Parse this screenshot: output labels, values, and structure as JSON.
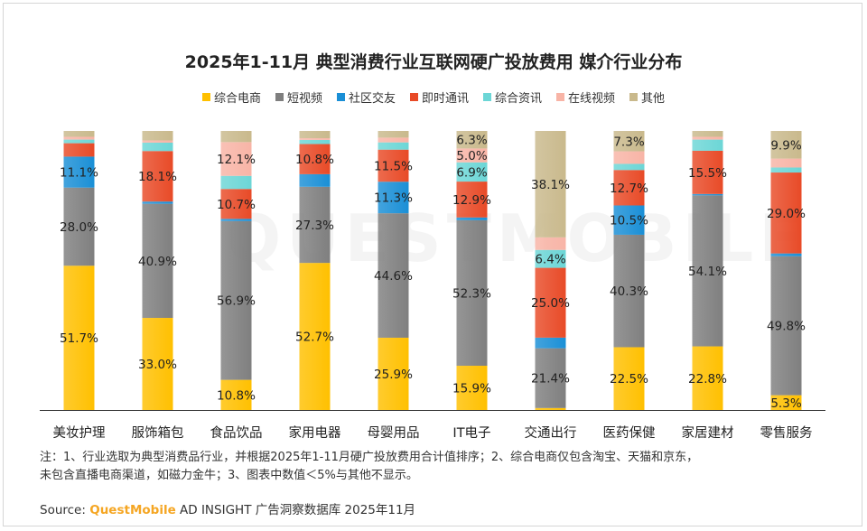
{
  "chart_data": {
    "type": "bar",
    "stacked": "percent",
    "title": "2025年1-11月 典型消费行业互联网硬广投放费用 媒介行业分布",
    "categories": [
      "美妆护理",
      "服饰箱包",
      "食品饮品",
      "家用电器",
      "母婴用品",
      "IT电子",
      "交通出行",
      "医药保健",
      "家居建材",
      "零售服务"
    ],
    "series": [
      {
        "name": "综合电商",
        "color": "#ffc000",
        "values": [
          51.7,
          33.0,
          10.8,
          52.7,
          25.9,
          15.9,
          0.7,
          22.5,
          22.8,
          5.3
        ]
      },
      {
        "name": "短视频",
        "color": "#7f7f7f",
        "values": [
          28.0,
          40.9,
          56.9,
          27.3,
          44.6,
          52.3,
          21.4,
          40.3,
          54.1,
          49.8
        ]
      },
      {
        "name": "社区交友",
        "color": "#1a8fd6",
        "values": [
          11.1,
          0.8,
          0.8,
          4.5,
          11.3,
          1.0,
          3.8,
          10.5,
          0.5,
          1.0
        ]
      },
      {
        "name": "即时通讯",
        "color": "#e84a27",
        "values": [
          4.8,
          18.1,
          10.7,
          10.8,
          11.5,
          12.9,
          25.0,
          12.7,
          15.5,
          29.0
        ]
      },
      {
        "name": "综合资讯",
        "color": "#6cd6d6",
        "values": [
          1.3,
          3.0,
          4.7,
          1.5,
          2.6,
          6.9,
          6.4,
          2.2,
          4.0,
          1.8
        ]
      },
      {
        "name": "在线视频",
        "color": "#f8b4a6",
        "values": [
          1.0,
          0.8,
          12.1,
          0.6,
          1.7,
          5.0,
          4.5,
          4.5,
          1.0,
          3.2
        ]
      },
      {
        "name": "其他",
        "color": "#c9b98c",
        "values": [
          2.1,
          3.4,
          4.0,
          2.6,
          2.4,
          6.3,
          38.1,
          7.3,
          2.1,
          9.9
        ]
      }
    ],
    "label_threshold": 5,
    "ylim": [
      0,
      100
    ],
    "legend": "top-center"
  },
  "notes": {
    "line1": "注：1、行业选取为典型消费品行业，并根据2025年1-11月硬广投放费用合计值排序；2、综合电商仅包含淘宝、天猫和京东，",
    "line2": "未包含直播电商渠道，如磁力金牛；3、图表中数值＜5%与其他不显示。"
  },
  "source": {
    "prefix": "Source:",
    "brand": "QuestMobile",
    "rest": "AD INSIGHT 广告洞察数据库 2025年11月"
  },
  "watermark": "QUESTMOBILE"
}
